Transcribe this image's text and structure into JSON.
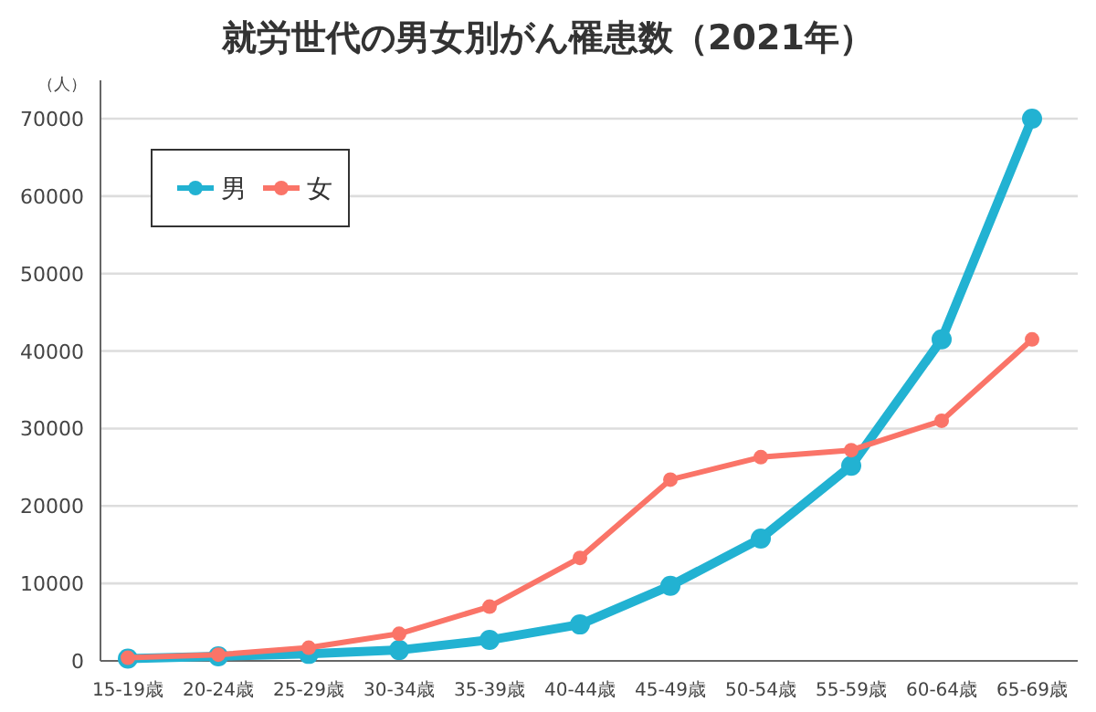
{
  "chart_data": {
    "type": "line",
    "title": "就労世代の男女別がん罹患数（2021年）",
    "ylabel": "（人）",
    "categories": [
      "15-19歳",
      "20-24歳",
      "25-29歳",
      "30-34歳",
      "35-39歳",
      "40-44歳",
      "45-49歳",
      "50-54歳",
      "55-59歳",
      "60-64歳",
      "65-69歳"
    ],
    "series": [
      {
        "name": "男",
        "color": "#22b2d2",
        "values": [
          300,
          600,
          900,
          1400,
          2700,
          4700,
          9700,
          15800,
          25200,
          41500,
          70000
        ]
      },
      {
        "name": "女",
        "color": "#fa7468",
        "values": [
          400,
          800,
          1700,
          3500,
          7000,
          13300,
          23400,
          26300,
          27200,
          31000,
          41500
        ]
      }
    ],
    "ylim": [
      0,
      70000
    ],
    "yticks": [
      0,
      10000,
      20000,
      30000,
      40000,
      50000,
      60000,
      70000
    ],
    "grid": "y",
    "legend": "top left",
    "marker": "circle",
    "line_style": "solid"
  }
}
